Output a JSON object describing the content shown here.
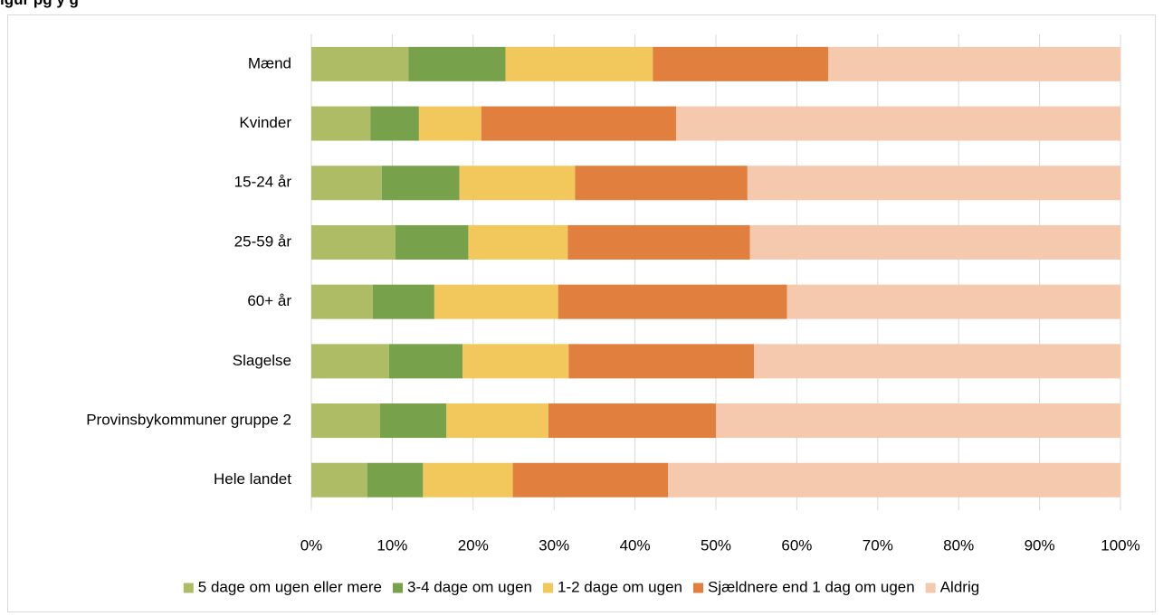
{
  "title_fragment": "igur  pg           y       g",
  "chart_data": {
    "type": "bar",
    "orientation": "horizontal",
    "stacked": true,
    "percent_stacked": true,
    "categories": [
      "Mænd",
      "Kvinder",
      "15-24 år",
      "25-59 år",
      "60+ år",
      "Slagelse",
      "Provinsbykommuner gruppe 2",
      "Hele landet"
    ],
    "series": [
      {
        "name": "5 dage om ugen eller mere",
        "color": "#aebd65",
        "values": [
          12,
          7.3,
          8.7,
          10.4,
          7.6,
          9.6,
          8.5,
          6.9
        ]
      },
      {
        "name": "3-4 dage om ugen",
        "color": "#77a14a",
        "values": [
          12,
          6.0,
          9.6,
          9.0,
          7.6,
          9.1,
          8.2,
          6.9
        ]
      },
      {
        "name": "1-2 dage om ugen",
        "color": "#f2c85c",
        "values": [
          18.2,
          7.7,
          14.3,
          12.3,
          15.3,
          13.1,
          12.6,
          11.1
        ]
      },
      {
        "name": "Sjældnere end 1 dag om ugen",
        "color": "#e07f3e",
        "values": [
          21.7,
          24.1,
          21.3,
          22.5,
          28.3,
          22.9,
          20.7,
          19.2
        ]
      },
      {
        "name": "Aldrig",
        "color": "#f4c9ae",
        "values": [
          36.1,
          54.9,
          46.1,
          45.8,
          41.2,
          45.3,
          50.0,
          55.9
        ]
      }
    ],
    "xlim": [
      0,
      100
    ],
    "x_ticks": [
      "0%",
      "10%",
      "20%",
      "30%",
      "40%",
      "50%",
      "60%",
      "70%",
      "80%",
      "90%",
      "100%"
    ],
    "grid": true,
    "legend_position": "bottom"
  }
}
